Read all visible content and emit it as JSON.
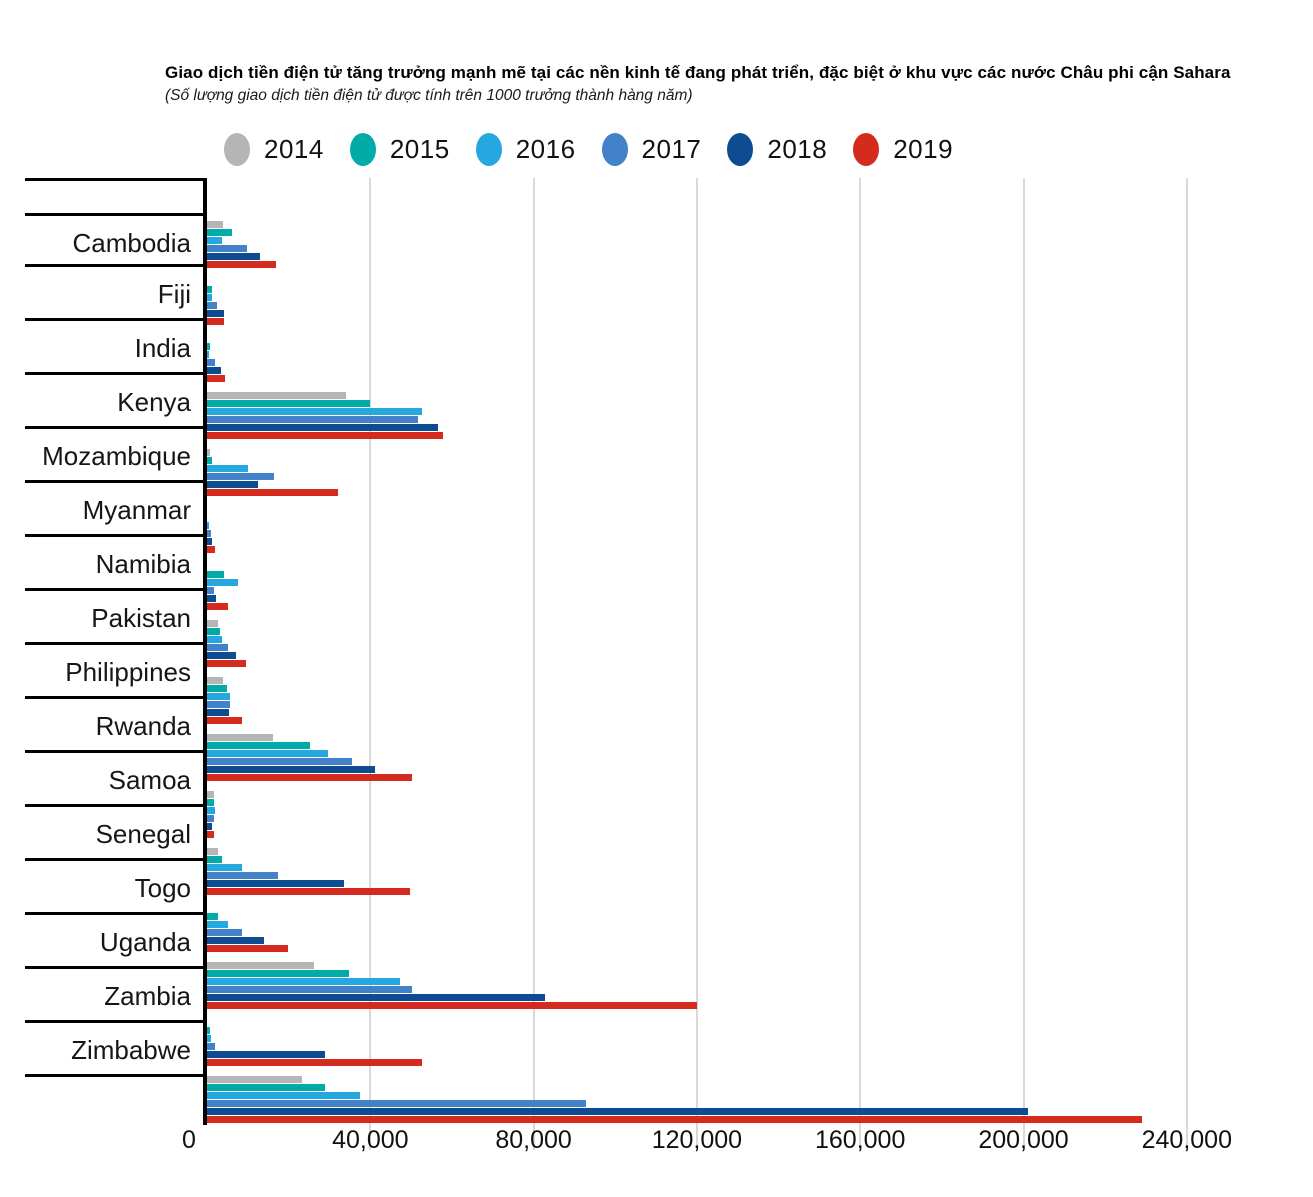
{
  "header": {
    "title": "Giao dịch tiền điện tử  tăng trưởng mạnh mẽ tại các nền kinh tế đang phát triển, đặc biệt ở khu vực các nước Châu phi cận Sahara",
    "subtitle": "(Số lượng giao dịch tiền điện tử được tính trên 1000 trưởng thành hàng năm)"
  },
  "chart_data": {
    "type": "bar",
    "orientation": "horizontal",
    "title": "Giao dịch tiền điện tử  tăng trưởng mạnh mẽ tại các nền kinh tế đang phát triển, đặc biệt ở khu vực các nước Châu phi cận Sahara",
    "subtitle": "(Số lượng giao dịch tiền điện tử được tính trên 1000 trưởng thành hàng năm)",
    "xlabel": "",
    "ylabel": "",
    "xlim": [
      0,
      240000
    ],
    "grid": true,
    "legend_position": "top",
    "categories": [
      "Cambodia",
      "Fiji",
      "India",
      "Kenya",
      "Mozambique",
      "Myanmar",
      "Namibia",
      "Pakistan",
      "Philippines",
      "Rwanda",
      "Samoa",
      "Senegal",
      "Togo",
      "Uganda",
      "Zambia",
      "Zimbabwe"
    ],
    "series": [
      {
        "name": "2014",
        "color": "#b5b5b5",
        "values": [
          4000,
          0,
          0,
          34100,
          700,
          0,
          0,
          2600,
          4000,
          16200,
          1800,
          2600,
          0,
          26200,
          0,
          23300
        ]
      },
      {
        "name": "2015",
        "color": "#00aba8",
        "values": [
          6100,
          1200,
          700,
          40000,
          1200,
          0,
          4100,
          3200,
          4900,
          25200,
          1600,
          3700,
          2700,
          34900,
          700,
          29000
        ]
      },
      {
        "name": "2016",
        "color": "#25a8e0",
        "values": [
          3600,
          1200,
          500,
          52600,
          10100,
          500,
          7500,
          3700,
          5600,
          29600,
          2000,
          8600,
          5100,
          47200,
          1100,
          37400
        ]
      },
      {
        "name": "2017",
        "color": "#4381c8",
        "values": [
          9700,
          2400,
          2000,
          51800,
          16500,
          900,
          1800,
          5100,
          5600,
          35500,
          1800,
          17400,
          8500,
          50200,
          2000,
          92800
        ]
      },
      {
        "name": "2018",
        "color": "#0d4c91",
        "values": [
          13000,
          4200,
          3400,
          56700,
          12600,
          1200,
          2200,
          7100,
          5500,
          41100,
          1200,
          33600,
          13900,
          82900,
          29000,
          201000
        ]
      },
      {
        "name": "2019",
        "color": "#d52b1e",
        "values": [
          17000,
          4200,
          4400,
          57700,
          32200,
          2000,
          5100,
          9600,
          8600,
          50200,
          1800,
          49700,
          19800,
          120000,
          52700,
          229000
        ]
      }
    ],
    "ticks": {
      "values": [
        0,
        40000,
        80000,
        120000,
        160000,
        200000,
        240000
      ],
      "labels": [
        "0",
        "40,000",
        "80,000",
        "120,000",
        "160,000",
        "200,000",
        "240,000"
      ]
    }
  }
}
